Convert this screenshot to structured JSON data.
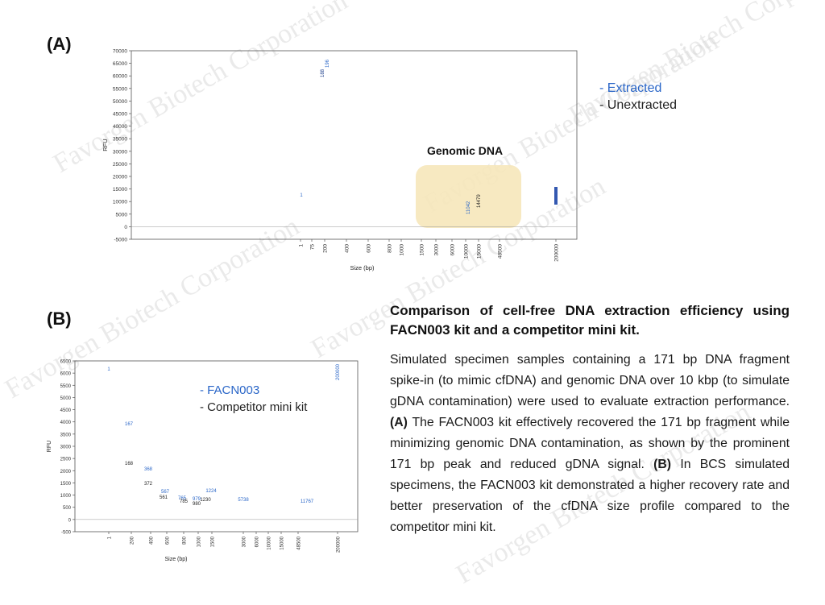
{
  "panels": {
    "a_label": "(A)",
    "b_label": "(B)"
  },
  "watermark": "Favorgen Biotech Corporation",
  "caption": {
    "title": "Comparison of cell-free DNA extraction efficiency using FACN003 kit and a competitor mini kit.",
    "p1": "Simulated specimen samples containing a 171 bp DNA fragment spike-in (to mimic cfDNA) and genomic DNA over 10 kbp (to simulate gDNA contamination) were used to evaluate extraction performance.",
    "a_ref": "(A)",
    "p2": "The FACN003 kit effectively recovered the 171 bp fragment while minimizing genomic DNA contamination, as shown by the prominent 171 bp peak and reduced gDNA signal.",
    "b_ref": "(B)",
    "p3": "In BCS simulated specimens, the FACN003 kit demonstrated a higher recovery rate and better preservation of the cfDNA size profile compared to the competitor mini kit."
  },
  "colors": {
    "blue": "#2a66c8",
    "black": "#111111",
    "highlight": "#f6e7ba"
  },
  "chart_data": [
    {
      "type": "line",
      "xlabel": "Size (bp)",
      "ylabel": "RFU",
      "ylim": [
        -5000,
        70000
      ],
      "yticks": [
        "70000",
        "65000",
        "60000",
        "55000",
        "50000",
        "45000",
        "40000",
        "35000",
        "30000",
        "25000",
        "20000",
        "15000",
        "10000",
        "5000",
        "0",
        "-5000"
      ],
      "xticks": [
        "1",
        "75",
        "200",
        "400",
        "600",
        "800",
        "1000",
        "1500",
        "3000",
        "6000",
        "10000",
        "15000",
        "48500",
        "200000"
      ],
      "annotation": "Genomic DNA",
      "legend": [
        "- Extracted",
        "- Unextracted"
      ],
      "peak_labels": [
        "1",
        "188",
        "196",
        "11042",
        "14479"
      ],
      "series": [
        {
          "name": "Extracted",
          "peaks": [
            {
              "x": "1",
              "y": 6000
            },
            {
              "x": "196",
              "y": 63000
            },
            {
              "x": "11042",
              "y": 3500
            },
            {
              "x": "200000",
              "y": 6200
            }
          ]
        },
        {
          "name": "Unextracted",
          "peaks": [
            {
              "x": "1",
              "y": 6300
            },
            {
              "x": "188",
              "y": 63000
            },
            {
              "x": "14479",
              "y": 6500
            },
            {
              "x": "200000",
              "y": 6000
            }
          ]
        }
      ]
    },
    {
      "type": "line",
      "xlabel": "Size (bp)",
      "ylabel": "RFU",
      "ylim": [
        -500,
        6500
      ],
      "yticks": [
        "6500",
        "6000",
        "5500",
        "5000",
        "4500",
        "4000",
        "3500",
        "3000",
        "2500",
        "2000",
        "1500",
        "1000",
        "500",
        "0",
        "-500"
      ],
      "xticks": [
        "1",
        "200",
        "400",
        "600",
        "800",
        "1000",
        "1500",
        "3000",
        "6000",
        "10000",
        "15000",
        "48500",
        "200000"
      ],
      "legend": [
        "- FACN003",
        "- Competitor mini kit"
      ],
      "peak_labels": [
        "1",
        "167",
        "168",
        "368",
        "372",
        "567",
        "561",
        "765",
        "785",
        "979",
        "980",
        "1224",
        "1230",
        "5738",
        "11767",
        "200000"
      ],
      "series": [
        {
          "name": "FACN003",
          "peaks": [
            {
              "x": "1",
              "y": 6100
            },
            {
              "x": "167",
              "y": 3300
            },
            {
              "x": "368",
              "y": 2200
            },
            {
              "x": "567",
              "y": 800
            },
            {
              "x": "765",
              "y": 500
            },
            {
              "x": "979",
              "y": 380
            },
            {
              "x": "1224",
              "y": 560
            },
            {
              "x": "5738",
              "y": 120
            },
            {
              "x": "11767",
              "y": 80
            },
            {
              "x": "200000",
              "y": 6200
            }
          ]
        },
        {
          "name": "Competitor mini kit",
          "peaks": [
            {
              "x": "1",
              "y": 5900
            },
            {
              "x": "168",
              "y": 1800
            },
            {
              "x": "372",
              "y": 1000
            },
            {
              "x": "561",
              "y": 450
            },
            {
              "x": "785",
              "y": 300
            },
            {
              "x": "980",
              "y": 250
            },
            {
              "x": "1230",
              "y": 370
            },
            {
              "x": "5738",
              "y": 60
            },
            {
              "x": "200000",
              "y": 6000
            }
          ]
        }
      ]
    }
  ]
}
